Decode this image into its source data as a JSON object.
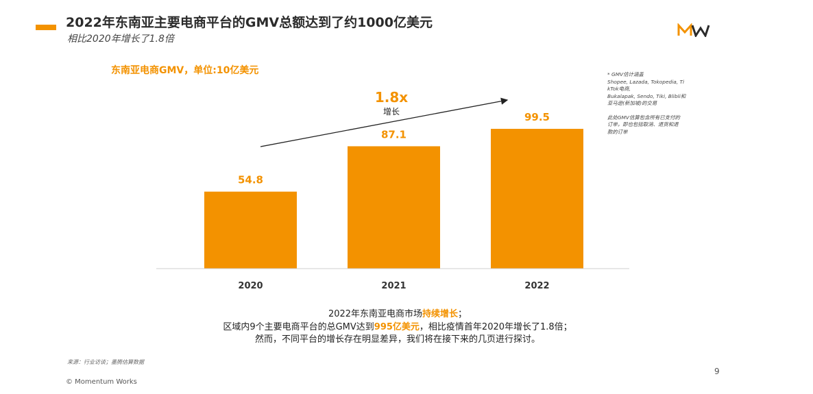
{
  "header": {
    "title": "2022年东南亚主要电商平台的GMV总额达到了约1000亿美元",
    "subtitle": "相比2020年增长了1.8倍",
    "logo_text": "MW"
  },
  "unit_label": "东南亚电商GMV，单位:10亿美元",
  "growth": {
    "value": "1.8x",
    "label": "增长"
  },
  "note": {
    "lines_a": [
      "* GMV估计涵盖",
      "Shopee, Lazada, Tokopedia, Ti",
      "kTok电商,",
      "Bukalapak, Sendo, Tiki, Blibli和",
      "亚马逊(新加坡)的交易"
    ],
    "lines_b": [
      "此处GMV估算包含所有已支付的",
      "订单，即也包括取消、退货和退",
      "款的订单"
    ]
  },
  "chart_data": {
    "type": "bar",
    "title": "东南亚电商GMV，单位:10亿美元",
    "categories": [
      "2020",
      "2021",
      "2022"
    ],
    "values": [
      54.8,
      87.1,
      99.5
    ],
    "data_labels": [
      "54.8",
      "87.1",
      "99.5"
    ],
    "ylim": [
      0,
      100
    ],
    "xlabel": "",
    "ylabel": "",
    "grid": false,
    "annotation": "1.8x 增长",
    "bar_color": "#f39200",
    "label_color": "#f39200"
  },
  "summary": {
    "line1_pre": "2022年东南亚电商市场",
    "line1_hl": "持续增长",
    "line1_post": "；",
    "line2_pre": "区域内9个主要电商平台的总GMV达到",
    "line2_hl": "995亿美元",
    "line2_post": "，相比疫情首年2020年增长了1.8倍；",
    "line3": "然而，不同平台的增长存在明显差异，我们将在接下来的几页进行探讨。"
  },
  "footer": {
    "source": "来源：行业访谈；墨腾估算数据",
    "copyright": "© Momentum Works",
    "page_number": "9"
  },
  "colors": {
    "accent": "#f39200"
  }
}
